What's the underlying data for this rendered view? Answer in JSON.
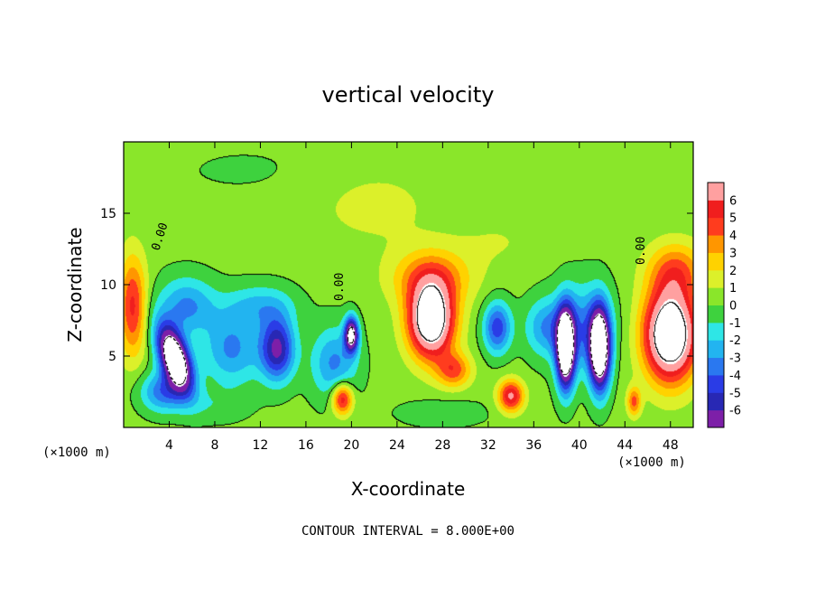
{
  "chart_data": {
    "type": "heatmap",
    "title": "vertical velocity",
    "xlabel": "X-coordinate",
    "ylabel": "Z-coordinate",
    "x_unit_left": "(×1000 m)",
    "x_unit_right": "(×1000 m)",
    "footer": "CONTOUR INTERVAL = 8.000E+00",
    "xlim": [
      0,
      50
    ],
    "ylim": [
      0,
      20
    ],
    "x_ticks": [
      4,
      8,
      12,
      16,
      20,
      24,
      28,
      32,
      36,
      40,
      44,
      48
    ],
    "x_tick_labels": [
      "4",
      "8",
      "12",
      "16",
      "20",
      "24",
      "28",
      "32",
      "36",
      "40",
      "44",
      "48"
    ],
    "y_ticks": [
      5,
      10,
      15
    ],
    "y_tick_labels": [
      "5",
      "10",
      "15"
    ],
    "colorbar": {
      "levels": [
        -6,
        -5,
        -4,
        -3,
        -2,
        -1,
        0,
        1,
        2,
        3,
        4,
        5,
        6
      ],
      "labels": [
        "-6",
        "-5",
        "-4",
        "-3",
        "-2",
        "-1",
        "0",
        "1",
        "2",
        "3",
        "4",
        "5",
        "6"
      ],
      "colors": [
        "#7d1fa8",
        "#2828b4",
        "#2a3ce6",
        "#2a78f0",
        "#22b4f0",
        "#2ee6e6",
        "#3ed23e",
        "#8ae62a",
        "#dcf02a",
        "#ffd200",
        "#ff9600",
        "#ff3c1e",
        "#f01e1e",
        "#ffa0a0"
      ]
    },
    "contour_labels": [
      "0.00",
      "0.00",
      "0.00"
    ],
    "background_value": 0.3,
    "features": [
      {
        "x": 4.5,
        "z": 4.8,
        "sx": 1.2,
        "sz": 2.4,
        "amp": -12,
        "rot": -0.45
      },
      {
        "x": 3.5,
        "z": 2.5,
        "sx": 2.0,
        "sz": 1.4,
        "amp": -4
      },
      {
        "x": 0.8,
        "z": 8.5,
        "sx": 1.2,
        "sz": 3.5,
        "amp": 5
      },
      {
        "x": 5.5,
        "z": 8.5,
        "sx": 2.5,
        "sz": 2.0,
        "amp": -3.5
      },
      {
        "x": 9.5,
        "z": 5.5,
        "sx": 2.5,
        "sz": 2.5,
        "amp": -3.5
      },
      {
        "x": 13.5,
        "z": 5.5,
        "sx": 1.5,
        "sz": 2.2,
        "amp": -6.5
      },
      {
        "x": 12.0,
        "z": 8.5,
        "sx": 3.0,
        "sz": 1.5,
        "amp": -2.5
      },
      {
        "x": 18.5,
        "z": 4.5,
        "sx": 2.0,
        "sz": 2.5,
        "amp": -3.5
      },
      {
        "x": 19.2,
        "z": 2.0,
        "sx": 0.9,
        "sz": 1.1,
        "amp": 6
      },
      {
        "x": 20.0,
        "z": 6.5,
        "sx": 0.6,
        "sz": 1.2,
        "amp": -9
      },
      {
        "x": 27.0,
        "z": 7.5,
        "sx": 2.0,
        "sz": 2.6,
        "amp": 10.5
      },
      {
        "x": 27.0,
        "z": 10.5,
        "sx": 3.5,
        "sz": 2.0,
        "amp": 3.5
      },
      {
        "x": 29.0,
        "z": 4.0,
        "sx": 1.5,
        "sz": 1.2,
        "amp": 4
      },
      {
        "x": 34.0,
        "z": 2.2,
        "sx": 1.1,
        "sz": 1.1,
        "amp": 6
      },
      {
        "x": 32.8,
        "z": 7.0,
        "sx": 1.2,
        "sz": 1.8,
        "amp": -5
      },
      {
        "x": 38.8,
        "z": 5.5,
        "sx": 0.8,
        "sz": 2.7,
        "amp": -12
      },
      {
        "x": 41.8,
        "z": 5.5,
        "sx": 0.9,
        "sz": 2.8,
        "amp": -12
      },
      {
        "x": 40.3,
        "z": 7.0,
        "sx": 2.5,
        "sz": 3.0,
        "amp": -3.5
      },
      {
        "x": 37.0,
        "z": 7.0,
        "sx": 1.8,
        "sz": 2.0,
        "amp": -3
      },
      {
        "x": 48.0,
        "z": 6.5,
        "sx": 2.3,
        "sz": 3.2,
        "amp": 11
      },
      {
        "x": 48.5,
        "z": 11.0,
        "sx": 2.5,
        "sz": 2.0,
        "amp": 3.5
      },
      {
        "x": 44.8,
        "z": 1.8,
        "sx": 0.6,
        "sz": 1.0,
        "amp": 4
      },
      {
        "x": 22.0,
        "z": 15.5,
        "sx": 6.0,
        "sz": 3.0,
        "amp": 1.0
      },
      {
        "x": 33.0,
        "z": 13.0,
        "sx": 4.0,
        "sz": 2.0,
        "amp": 0.7
      },
      {
        "x": 11.0,
        "z": 18.0,
        "sx": 8.0,
        "sz": 2.0,
        "amp": -0.4
      },
      {
        "x": 28.0,
        "z": 1.0,
        "sx": 4.0,
        "sz": 1.0,
        "amp": -1.0
      },
      {
        "x": 8.0,
        "z": 1.5,
        "sx": 3.0,
        "sz": 1.2,
        "amp": -1.0
      }
    ]
  }
}
